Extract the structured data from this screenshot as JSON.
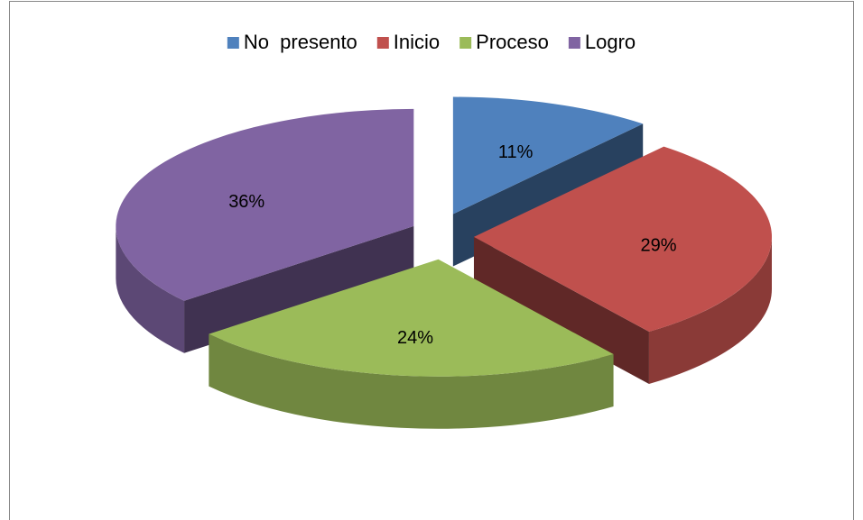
{
  "chart_data": {
    "type": "pie",
    "categories": [
      "No  presento",
      "Inicio",
      "Proceso",
      "Logro"
    ],
    "values": [
      11,
      29,
      24,
      36
    ],
    "value_labels": [
      "11%",
      "29%",
      "24%",
      "36%"
    ],
    "colors": [
      "#4f81bd",
      "#c0504d",
      "#9bbb59",
      "#8064a2"
    ],
    "legend": "top"
  }
}
